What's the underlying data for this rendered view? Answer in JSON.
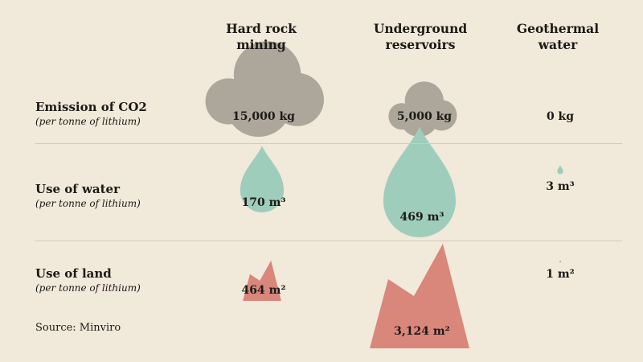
{
  "chart_data": {
    "type": "table",
    "columns": [
      "Hard rock\nmining",
      "Underground\nreservoirs",
      "Geothermal\nwater"
    ],
    "rows": [
      {
        "label": "Emission of CO2",
        "sublabel": "(per tonne of lithium)",
        "icon": "cloud-icon",
        "color": "#aca69b",
        "values": [
          15000,
          5000,
          0
        ],
        "labels": [
          "15,000 kg",
          "5,000 kg",
          "0 kg"
        ]
      },
      {
        "label": "Use of water",
        "sublabel": "(per tonne of lithium)",
        "icon": "water-drop-icon",
        "color": "#9fcdbb",
        "values": [
          170,
          469,
          3
        ],
        "labels": [
          "170 m³",
          "469 m³",
          "3 m³"
        ]
      },
      {
        "label": "Use of land",
        "sublabel": "(per tonne of lithium)",
        "icon": "mountain-icon",
        "color": "#d9867b",
        "values": [
          464,
          3124,
          1
        ],
        "labels": [
          "464 m²",
          "3,124 m²",
          "1 m²"
        ]
      }
    ],
    "source": "Source: Minviro"
  }
}
